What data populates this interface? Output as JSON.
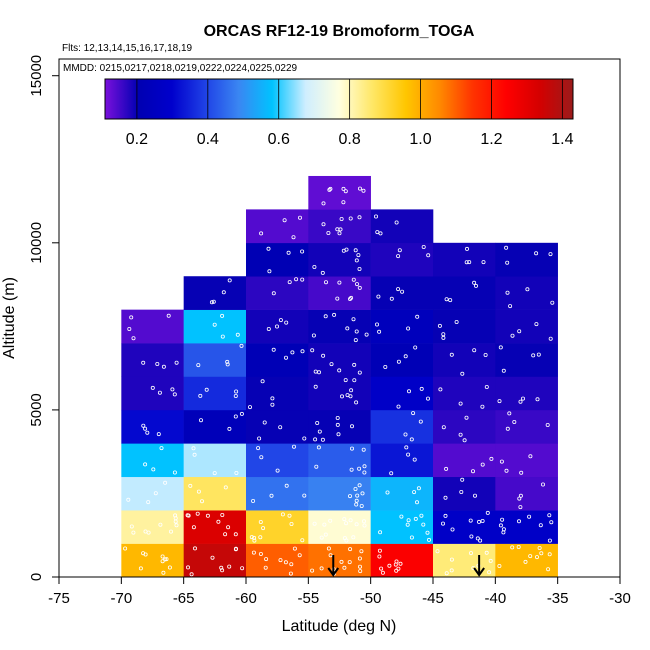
{
  "chart_data": {
    "type": "heatmap",
    "title": "ORCAS RF12-19 Bromoform_TOGA",
    "subtitle_flights": "Flts: 12,13,14,15,16,17,18,19",
    "subtitle_dates": "MMDD: 0215,0217,0218,0219,0222,0224,0225,0229",
    "xlabel": "Latitude (deg N)",
    "ylabel": "Altitude (m)",
    "xlim": [
      -75,
      -30
    ],
    "ylim": [
      0,
      15500
    ],
    "xticks": [
      -75,
      -70,
      -65,
      -60,
      -55,
      -50,
      -45,
      -40,
      -35,
      -30
    ],
    "xtick_labels": [
      "-75",
      "-70",
      "-65",
      "-60",
      "-55",
      "-50",
      "-45",
      "-40",
      "-35",
      "-30"
    ],
    "yticks": [
      0,
      5000,
      10000,
      15000
    ],
    "ytick_labels": [
      "0",
      "5000",
      "10000",
      "15000"
    ],
    "bin_width_deg": 5,
    "bin_height_m": 1000,
    "colorbar": {
      "min": 0.11,
      "max": 1.43,
      "ticks": [
        0.2,
        0.4,
        0.6,
        0.8,
        1.0,
        1.2,
        1.4
      ],
      "tick_labels": [
        "0.2",
        "0.4",
        "0.6",
        "0.8",
        "1.0",
        "1.2",
        "1.4"
      ]
    },
    "columns": [
      {
        "lat_min": -70,
        "alt_bins": [
          [
            0,
            0.98
          ],
          [
            1000,
            0.82
          ],
          [
            2000,
            0.67
          ],
          [
            3000,
            0.58
          ],
          [
            4000,
            0.31
          ],
          [
            5000,
            0.18
          ],
          [
            6000,
            0.18
          ],
          [
            7000,
            0.14
          ]
        ]
      },
      {
        "lat_min": -65,
        "alt_bins": [
          [
            0,
            1.36
          ],
          [
            1000,
            1.32
          ],
          [
            2000,
            0.87
          ],
          [
            3000,
            0.66
          ],
          [
            4000,
            0.23
          ],
          [
            5000,
            0.36
          ],
          [
            6000,
            0.42
          ],
          [
            7000,
            0.58
          ],
          [
            8000,
            0.2
          ]
        ]
      },
      {
        "lat_min": -60,
        "alt_bins": [
          [
            0,
            1.1
          ],
          [
            1000,
            0.92
          ],
          [
            2000,
            0.46
          ],
          [
            3000,
            0.4
          ],
          [
            4000,
            0.2
          ],
          [
            5000,
            0.2
          ],
          [
            6000,
            0.22
          ],
          [
            7000,
            0.19
          ],
          [
            8000,
            0.17
          ],
          [
            9000,
            0.21
          ],
          [
            10000,
            0.14
          ]
        ]
      },
      {
        "lat_min": -55,
        "alt_bins": [
          [
            0,
            1.08
          ],
          [
            1000,
            0.78
          ],
          [
            2000,
            0.48
          ],
          [
            3000,
            0.43
          ],
          [
            4000,
            0.2
          ],
          [
            5000,
            0.19
          ],
          [
            6000,
            0.19
          ],
          [
            7000,
            0.2
          ],
          [
            8000,
            0.15
          ],
          [
            9000,
            0.19
          ],
          [
            10000,
            0.16
          ],
          [
            11000,
            0.13
          ]
        ]
      },
      {
        "lat_min": -50,
        "alt_bins": [
          [
            0,
            1.25
          ],
          [
            1000,
            0.58
          ],
          [
            2000,
            0.56
          ],
          [
            3000,
            0.33
          ],
          [
            4000,
            0.37
          ],
          [
            5000,
            0.28
          ],
          [
            6000,
            0.22
          ],
          [
            7000,
            0.24
          ],
          [
            8000,
            0.2
          ],
          [
            9000,
            0.18
          ],
          [
            10000,
            0.19
          ]
        ]
      },
      {
        "lat_min": -45,
        "alt_bins": [
          [
            0,
            0.85
          ],
          [
            1000,
            0.28
          ],
          [
            2000,
            0.19
          ],
          [
            3000,
            0.14
          ],
          [
            4000,
            0.17
          ],
          [
            5000,
            0.18
          ],
          [
            6000,
            0.19
          ],
          [
            7000,
            0.2
          ],
          [
            8000,
            0.2
          ],
          [
            9000,
            0.19
          ]
        ]
      },
      {
        "lat_min": -40,
        "alt_bins": [
          [
            0,
            0.98
          ],
          [
            1000,
            0.28
          ],
          [
            2000,
            0.15
          ],
          [
            3000,
            0.14
          ],
          [
            4000,
            0.16
          ],
          [
            5000,
            0.18
          ],
          [
            6000,
            0.2
          ],
          [
            7000,
            0.19
          ],
          [
            8000,
            0.19
          ],
          [
            9000,
            0.2
          ]
        ]
      }
    ],
    "arrows_latitude": [
      -53,
      -41.3
    ]
  },
  "colors": {
    "palette": [
      "#7a10dc",
      "#0000b2",
      "#0000cc",
      "#1f41e6",
      "#3a86f2",
      "#00c3ff",
      "#cfeeff",
      "#ffffe0",
      "#ffe766",
      "#ffc600",
      "#ff8a00",
      "#ff3300",
      "#ff0000",
      "#d40000",
      "#9b1b1b"
    ],
    "scatter_point": "#ffffff"
  }
}
